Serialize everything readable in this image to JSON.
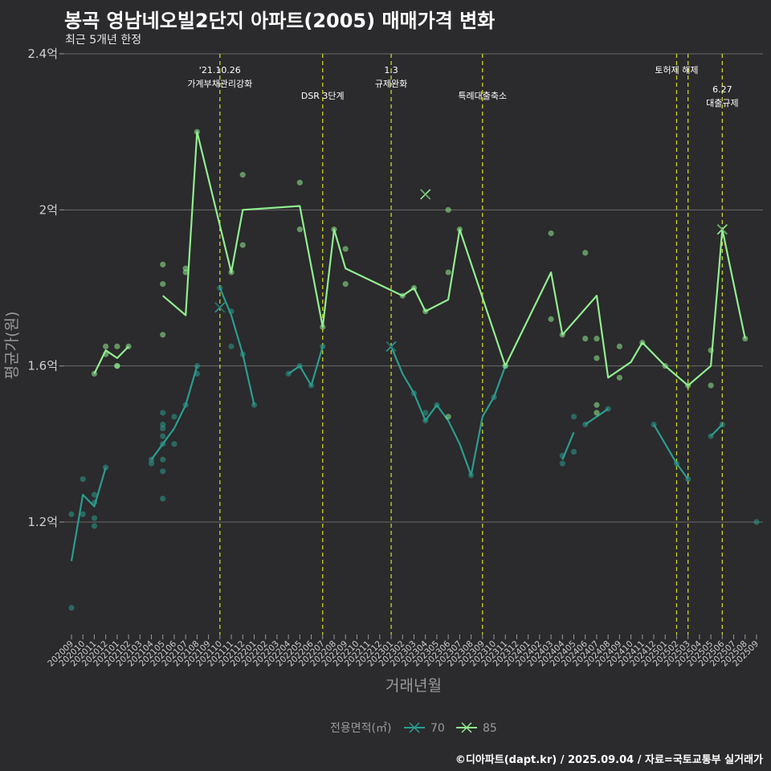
{
  "header": {
    "title": "봉곡 영남네오빌2단지 아파트(2005) 매매가격 변화",
    "subtitle": "최근 5개년 한정",
    "caption": "©디아파트(dapt.kr) / 2025.09.04 / 자료=국토교통부 실거래가"
  },
  "chart_data": {
    "type": "line",
    "xlabel": "거래년월",
    "ylabel": "평균가(원)",
    "ylim": [
      0.9,
      2.4
    ],
    "ytick_values": [
      1.2,
      1.6,
      2.0,
      2.4
    ],
    "ytick_labels": [
      "1.2억",
      "1.6억",
      "2억",
      "2.4억"
    ],
    "months": [
      "202009",
      "202010",
      "202011",
      "202012",
      "202101",
      "202102",
      "202103",
      "202104",
      "202105",
      "202106",
      "202107",
      "202108",
      "202109",
      "202110",
      "202111",
      "202112",
      "202201",
      "202202",
      "202203",
      "202204",
      "202205",
      "202206",
      "202207",
      "202208",
      "202209",
      "202210",
      "202211",
      "202212",
      "202301",
      "202302",
      "202303",
      "202304",
      "202305",
      "202306",
      "202307",
      "202308",
      "202309",
      "202310",
      "202311",
      "202312",
      "202401",
      "202402",
      "202403",
      "202404",
      "202405",
      "202406",
      "202407",
      "202408",
      "202409",
      "202410",
      "202411",
      "202412",
      "202501",
      "202502",
      "202503",
      "202504",
      "202505",
      "202506",
      "202507",
      "202508",
      "202509"
    ],
    "legend": {
      "title": "전용면적(㎡)",
      "placement": "bottom",
      "entries": [
        "70",
        "85"
      ]
    },
    "series": [
      {
        "name": "70",
        "color": "#2a9d8f",
        "lines": [
          [
            [
              "202009",
              1.1
            ],
            [
              "202010",
              1.27
            ],
            [
              "202011",
              1.24
            ],
            [
              "202012",
              1.34
            ]
          ],
          [
            [
              "202104",
              1.36
            ],
            [
              "202105",
              1.4
            ],
            [
              "202106",
              1.44
            ],
            [
              "202107",
              1.5
            ],
            [
              "202108",
              1.6
            ]
          ],
          [
            [
              "202110",
              1.8
            ],
            [
              "202111",
              1.73
            ],
            [
              "202112",
              1.63
            ],
            [
              "202201",
              1.5
            ]
          ],
          [
            [
              "202204",
              1.58
            ],
            [
              "202205",
              1.6
            ],
            [
              "202206",
              1.55
            ],
            [
              "202207",
              1.65
            ]
          ],
          [
            [
              "202301",
              1.65
            ],
            [
              "202302",
              1.58
            ],
            [
              "202303",
              1.53
            ],
            [
              "202304",
              1.46
            ],
            [
              "202305",
              1.5
            ],
            [
              "202306",
              1.46
            ],
            [
              "202307",
              1.4
            ],
            [
              "202308",
              1.32
            ],
            [
              "202309",
              1.47
            ],
            [
              "202310",
              1.52
            ],
            [
              "202311",
              1.6
            ]
          ],
          [
            [
              "202404",
              1.36
            ],
            [
              "202405",
              1.43
            ]
          ],
          [
            [
              "202406",
              1.45
            ],
            [
              "202407",
              1.47
            ],
            [
              "202408",
              1.49
            ]
          ],
          [
            [
              "202412",
              1.45
            ],
            [
              "202501",
              1.4
            ],
            [
              "202502",
              1.35
            ],
            [
              "202503",
              1.31
            ]
          ],
          [
            [
              "202505",
              1.42
            ],
            [
              "202506",
              1.45
            ]
          ]
        ],
        "points": [
          [
            "202009",
            1.22
          ],
          [
            "202009",
            0.98
          ],
          [
            "202010",
            1.22
          ],
          [
            "202010",
            1.31
          ],
          [
            "202011",
            1.21
          ],
          [
            "202011",
            1.19
          ],
          [
            "202011",
            1.25
          ],
          [
            "202011",
            1.27
          ],
          [
            "202012",
            1.34
          ],
          [
            "202104",
            1.35
          ],
          [
            "202104",
            1.36
          ],
          [
            "202105",
            1.4
          ],
          [
            "202105",
            1.36
          ],
          [
            "202105",
            1.42
          ],
          [
            "202105",
            1.44
          ],
          [
            "202105",
            1.45
          ],
          [
            "202105",
            1.48
          ],
          [
            "202105",
            1.33
          ],
          [
            "202105",
            1.26
          ],
          [
            "202106",
            1.4
          ],
          [
            "202106",
            1.47
          ],
          [
            "202107",
            1.5
          ],
          [
            "202108",
            1.6
          ],
          [
            "202108",
            1.58
          ],
          [
            "202110",
            1.8
          ],
          [
            "202111",
            1.74
          ],
          [
            "202111",
            1.65
          ],
          [
            "202112",
            1.63
          ],
          [
            "202201",
            1.5
          ],
          [
            "202204",
            1.58
          ],
          [
            "202205",
            1.6
          ],
          [
            "202206",
            1.55
          ],
          [
            "202207",
            1.65
          ],
          [
            "202303",
            1.53
          ],
          [
            "202304",
            1.46
          ],
          [
            "202304",
            1.48
          ],
          [
            "202305",
            1.5
          ],
          [
            "202308",
            1.32
          ],
          [
            "202310",
            1.52
          ],
          [
            "202311",
            1.6
          ],
          [
            "202404",
            1.37
          ],
          [
            "202404",
            1.35
          ],
          [
            "202405",
            1.38
          ],
          [
            "202405",
            1.47
          ],
          [
            "202406",
            1.45
          ],
          [
            "202408",
            1.49
          ],
          [
            "202412",
            1.45
          ],
          [
            "202502",
            1.35
          ],
          [
            "202503",
            1.31
          ],
          [
            "202505",
            1.42
          ],
          [
            "202506",
            1.45
          ],
          [
            "202509",
            1.2
          ]
        ],
        "x_markers": [
          [
            "202110",
            1.75
          ],
          [
            "202301",
            1.65
          ]
        ]
      },
      {
        "name": "85",
        "color": "#90ee90",
        "lines": [
          [
            [
              "202011",
              1.58
            ],
            [
              "202012",
              1.64
            ],
            [
              "202101",
              1.62
            ],
            [
              "202102",
              1.65
            ]
          ],
          [
            [
              "202105",
              1.78
            ],
            [
              "202107",
              1.73
            ],
            [
              "202108",
              2.2
            ],
            [
              "202110",
              1.96
            ],
            [
              "202111",
              1.84
            ],
            [
              "202112",
              2.0
            ],
            [
              "202205",
              2.01
            ],
            [
              "202207",
              1.7
            ],
            [
              "202208",
              1.95
            ],
            [
              "202209",
              1.85
            ],
            [
              "202302",
              1.78
            ],
            [
              "202303",
              1.8
            ],
            [
              "202304",
              1.74
            ],
            [
              "202306",
              1.77
            ],
            [
              "202307",
              1.95
            ],
            [
              "202311",
              1.6
            ],
            [
              "202403",
              1.84
            ],
            [
              "202404",
              1.68
            ],
            [
              "202407",
              1.78
            ],
            [
              "202408",
              1.57
            ],
            [
              "202410",
              1.61
            ],
            [
              "202411",
              1.66
            ],
            [
              "202501",
              1.6
            ],
            [
              "202503",
              1.55
            ],
            [
              "202505",
              1.6
            ],
            [
              "202506",
              1.95
            ],
            [
              "202508",
              1.67
            ]
          ]
        ],
        "points": [
          [
            "202011",
            1.58
          ],
          [
            "202012",
            1.65
          ],
          [
            "202012",
            1.63
          ],
          [
            "202101",
            1.6
          ],
          [
            "202101",
            1.65
          ],
          [
            "202101",
            1.6
          ],
          [
            "202102",
            1.65
          ],
          [
            "202105",
            1.81
          ],
          [
            "202105",
            1.86
          ],
          [
            "202105",
            1.68
          ],
          [
            "202107",
            1.84
          ],
          [
            "202107",
            1.85
          ],
          [
            "202108",
            2.2
          ],
          [
            "202111",
            1.84
          ],
          [
            "202112",
            2.09
          ],
          [
            "202112",
            1.91
          ],
          [
            "202205",
            2.07
          ],
          [
            "202205",
            1.95
          ],
          [
            "202207",
            1.7
          ],
          [
            "202208",
            1.95
          ],
          [
            "202209",
            1.9
          ],
          [
            "202209",
            1.81
          ],
          [
            "202302",
            1.78
          ],
          [
            "202303",
            1.8
          ],
          [
            "202304",
            1.74
          ],
          [
            "202306",
            1.47
          ],
          [
            "202306",
            2.0
          ],
          [
            "202306",
            1.84
          ],
          [
            "202307",
            1.95
          ],
          [
            "202311",
            1.6
          ],
          [
            "202403",
            1.94
          ],
          [
            "202403",
            1.72
          ],
          [
            "202404",
            1.68
          ],
          [
            "202406",
            1.67
          ],
          [
            "202406",
            1.89
          ],
          [
            "202407",
            1.67
          ],
          [
            "202407",
            1.62
          ],
          [
            "202407",
            1.5
          ],
          [
            "202407",
            1.48
          ],
          [
            "202409",
            1.57
          ],
          [
            "202409",
            1.65
          ],
          [
            "202411",
            1.66
          ],
          [
            "202501",
            1.6
          ],
          [
            "202503",
            1.55
          ],
          [
            "202505",
            1.55
          ],
          [
            "202505",
            1.64
          ],
          [
            "202508",
            1.67
          ]
        ],
        "x_markers": [
          [
            "202304",
            2.04
          ],
          [
            "202506",
            1.95
          ]
        ]
      }
    ],
    "events": [
      {
        "month": "202110",
        "label_lines": [
          "'21.10.26",
          "가계부채관리강화"
        ],
        "row": 0
      },
      {
        "month": "202207",
        "label_lines": [
          "DSR 3단계"
        ],
        "row": 1
      },
      {
        "month": "202301",
        "label_lines": [
          "1.3",
          "규제완화"
        ],
        "row": 0
      },
      {
        "month": "202309",
        "label_lines": [
          "특례대출축소"
        ],
        "row": 1
      },
      {
        "month": "202502",
        "label_lines": [
          "토허제 해제"
        ],
        "row": 0,
        "anchor": "mid-right"
      },
      {
        "month": "202503",
        "label_lines": [],
        "row": 0
      },
      {
        "month": "202506",
        "label_lines": [
          "6.27",
          "대출규제"
        ],
        "row": 2
      }
    ]
  }
}
